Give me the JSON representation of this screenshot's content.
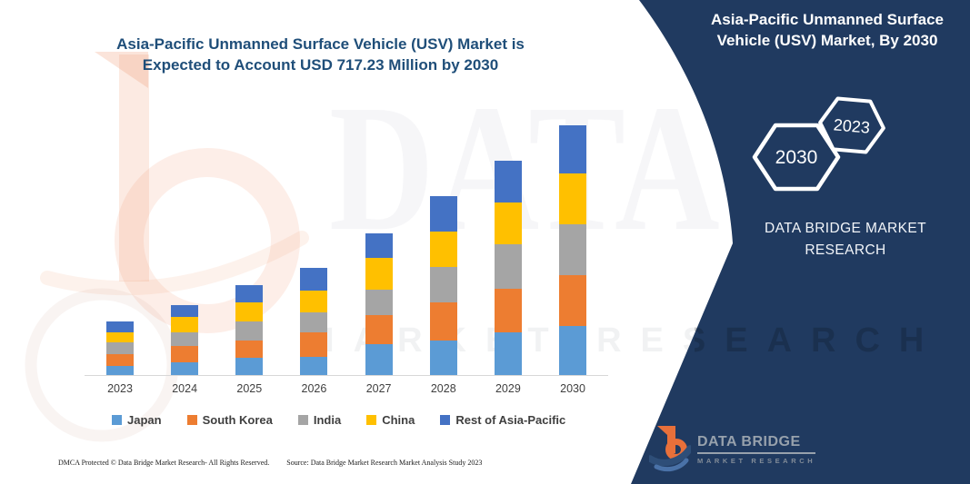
{
  "chart_data": {
    "type": "bar",
    "subtype": "stacked",
    "title": "Asia-Pacific Unmanned Surface Vehicle (USV) Market is\nExpected to Account USD 717.23 Million by 2030",
    "unit": "USD Million",
    "categories": [
      "2023",
      "2024",
      "2025",
      "2026",
      "2027",
      "2028",
      "2029",
      "2030"
    ],
    "series": [
      {
        "name": "Japan",
        "color": "#5B9BD5",
        "values": [
          26.0,
          36.5,
          50.5,
          52.1,
          88.5,
          100.0,
          123.2,
          141.7
        ]
      },
      {
        "name": "South Korea",
        "color": "#ED7D31",
        "values": [
          34.6,
          47.6,
          47.7,
          69.5,
          82.5,
          108.3,
          125.8,
          145.8
        ]
      },
      {
        "name": "India",
        "color": "#A5A5A5",
        "values": [
          33.1,
          39.1,
          54.7,
          57.3,
          73.7,
          102.6,
          126.1,
          146.6
        ]
      },
      {
        "name": "China",
        "color": "#FFC000",
        "values": [
          27.9,
          43.4,
          55.5,
          64.3,
          91.1,
          102.3,
          121.4,
          145.8
        ]
      },
      {
        "name": "Rest of Asia-Pacific",
        "color": "#4472C4",
        "values": [
          31.2,
          35.6,
          50.5,
          64.0,
          72.1,
          99.7,
          119.0,
          137.3
        ]
      }
    ],
    "totals": [
      152.8,
      202.2,
      258.9,
      307.2,
      407.9,
      512.9,
      615.5,
      717.23
    ],
    "ylim": [
      0,
      760
    ],
    "grid": false,
    "legend_position": "bottom"
  },
  "side_panel": {
    "title": "Asia-Pacific Unmanned Surface\nVehicle (USV) Market, By 2030",
    "hexagons": [
      {
        "label": "2030"
      },
      {
        "label": "2023"
      }
    ],
    "brand": "DATA BRIDGE MARKET\nRESEARCH",
    "logo_title": "DATA BRIDGE",
    "logo_subtitle": "MARKET RESEARCH",
    "panel_color": "#203A60"
  },
  "footer": {
    "dmca": "DMCA Protected © Data Bridge Market Research-  All Rights Reserved.",
    "source": "Source: Data Bridge Market Research  Market Analysis Study 2023"
  },
  "watermarks": {
    "big_text": "DATA BRIDGE",
    "spaced_text": "MARKET RESEARCH"
  }
}
